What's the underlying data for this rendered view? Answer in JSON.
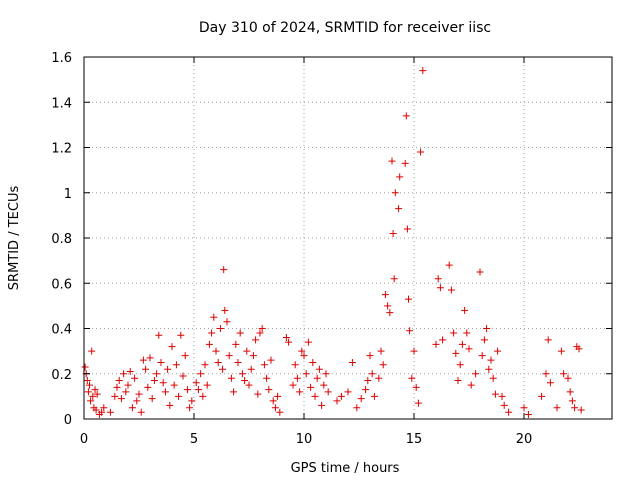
{
  "chart_data": {
    "type": "scatter",
    "title": "Day 310 of 2024, SRMTID for receiver iisc",
    "xlabel": "GPS time / hours",
    "ylabel": "SRMTID / TECUs",
    "xlim": [
      0,
      24
    ],
    "ylim": [
      0,
      1.6
    ],
    "x_ticks": [
      0,
      5,
      10,
      15,
      20
    ],
    "x_tick_labels": [
      "0",
      "5",
      "10",
      "15",
      "20"
    ],
    "y_ticks": [
      0,
      0.2,
      0.4,
      0.6,
      0.8,
      1.0,
      1.2,
      1.4,
      1.6
    ],
    "y_tick_labels": [
      "0",
      "0.2",
      "0.4",
      "0.6",
      "0.8",
      "1",
      "1.2",
      "1.4",
      "1.6"
    ],
    "grid": true,
    "marker": "+",
    "series": [
      {
        "name": "SRMTID",
        "color": "#dd0000",
        "points": [
          [
            0.05,
            0.23
          ],
          [
            0.1,
            0.2
          ],
          [
            0.15,
            0.17
          ],
          [
            0.2,
            0.12
          ],
          [
            0.25,
            0.15
          ],
          [
            0.3,
            0.08
          ],
          [
            0.35,
            0.3
          ],
          [
            0.4,
            0.1
          ],
          [
            0.45,
            0.05
          ],
          [
            0.5,
            0.13
          ],
          [
            0.55,
            0.04
          ],
          [
            0.6,
            0.11
          ],
          [
            0.7,
            0.02
          ],
          [
            0.8,
            0.03
          ],
          [
            0.9,
            0.05
          ],
          [
            1.2,
            0.03
          ],
          [
            1.4,
            0.1
          ],
          [
            1.5,
            0.14
          ],
          [
            1.6,
            0.17
          ],
          [
            1.7,
            0.09
          ],
          [
            1.8,
            0.2
          ],
          [
            1.9,
            0.12
          ],
          [
            2.0,
            0.15
          ],
          [
            2.1,
            0.21
          ],
          [
            2.2,
            0.05
          ],
          [
            2.3,
            0.18
          ],
          [
            2.4,
            0.08
          ],
          [
            2.5,
            0.11
          ],
          [
            2.6,
            0.03
          ],
          [
            2.7,
            0.26
          ],
          [
            2.8,
            0.22
          ],
          [
            2.9,
            0.14
          ],
          [
            3.0,
            0.27
          ],
          [
            3.1,
            0.09
          ],
          [
            3.2,
            0.17
          ],
          [
            3.3,
            0.2
          ],
          [
            3.4,
            0.37
          ],
          [
            3.5,
            0.25
          ],
          [
            3.6,
            0.16
          ],
          [
            3.7,
            0.12
          ],
          [
            3.8,
            0.22
          ],
          [
            3.9,
            0.06
          ],
          [
            4.0,
            0.32
          ],
          [
            4.1,
            0.15
          ],
          [
            4.2,
            0.24
          ],
          [
            4.3,
            0.1
          ],
          [
            4.4,
            0.37
          ],
          [
            4.5,
            0.19
          ],
          [
            4.6,
            0.28
          ],
          [
            4.7,
            0.13
          ],
          [
            4.8,
            0.05
          ],
          [
            4.9,
            0.08
          ],
          [
            5.1,
            0.16
          ],
          [
            5.2,
            0.13
          ],
          [
            5.3,
            0.2
          ],
          [
            5.4,
            0.1
          ],
          [
            5.5,
            0.24
          ],
          [
            5.6,
            0.15
          ],
          [
            5.7,
            0.33
          ],
          [
            5.8,
            0.38
          ],
          [
            5.9,
            0.45
          ],
          [
            6.0,
            0.3
          ],
          [
            6.1,
            0.25
          ],
          [
            6.2,
            0.4
          ],
          [
            6.3,
            0.22
          ],
          [
            6.35,
            0.66
          ],
          [
            6.4,
            0.48
          ],
          [
            6.5,
            0.43
          ],
          [
            6.6,
            0.28
          ],
          [
            6.7,
            0.18
          ],
          [
            6.8,
            0.12
          ],
          [
            6.9,
            0.33
          ],
          [
            7.0,
            0.25
          ],
          [
            7.1,
            0.38
          ],
          [
            7.2,
            0.2
          ],
          [
            7.3,
            0.17
          ],
          [
            7.4,
            0.3
          ],
          [
            7.5,
            0.15
          ],
          [
            7.6,
            0.22
          ],
          [
            7.7,
            0.28
          ],
          [
            7.8,
            0.35
          ],
          [
            7.9,
            0.11
          ],
          [
            8.0,
            0.38
          ],
          [
            8.1,
            0.4
          ],
          [
            8.2,
            0.24
          ],
          [
            8.3,
            0.18
          ],
          [
            8.4,
            0.13
          ],
          [
            8.5,
            0.26
          ],
          [
            8.6,
            0.08
          ],
          [
            8.7,
            0.05
          ],
          [
            8.8,
            0.1
          ],
          [
            8.9,
            0.03
          ],
          [
            9.2,
            0.36
          ],
          [
            9.3,
            0.34
          ],
          [
            9.5,
            0.15
          ],
          [
            9.6,
            0.24
          ],
          [
            9.7,
            0.18
          ],
          [
            9.8,
            0.12
          ],
          [
            9.9,
            0.3
          ],
          [
            10.0,
            0.28
          ],
          [
            10.1,
            0.2
          ],
          [
            10.2,
            0.34
          ],
          [
            10.3,
            0.14
          ],
          [
            10.4,
            0.25
          ],
          [
            10.5,
            0.1
          ],
          [
            10.6,
            0.18
          ],
          [
            10.7,
            0.22
          ],
          [
            10.8,
            0.06
          ],
          [
            10.9,
            0.15
          ],
          [
            11.0,
            0.2
          ],
          [
            11.1,
            0.12
          ],
          [
            11.5,
            0.08
          ],
          [
            11.7,
            0.1
          ],
          [
            12.0,
            0.12
          ],
          [
            12.2,
            0.25
          ],
          [
            12.4,
            0.05
          ],
          [
            12.6,
            0.09
          ],
          [
            12.8,
            0.13
          ],
          [
            12.9,
            0.17
          ],
          [
            13.0,
            0.28
          ],
          [
            13.1,
            0.2
          ],
          [
            13.2,
            0.1
          ],
          [
            13.4,
            0.18
          ],
          [
            13.5,
            0.3
          ],
          [
            13.6,
            0.24
          ],
          [
            13.7,
            0.55
          ],
          [
            13.8,
            0.5
          ],
          [
            13.9,
            0.47
          ],
          [
            14.0,
            1.14
          ],
          [
            14.05,
            0.82
          ],
          [
            14.1,
            0.62
          ],
          [
            14.15,
            1.0
          ],
          [
            14.3,
            0.93
          ],
          [
            14.35,
            1.07
          ],
          [
            14.6,
            1.13
          ],
          [
            14.65,
            1.34
          ],
          [
            14.7,
            0.84
          ],
          [
            14.75,
            0.53
          ],
          [
            14.8,
            0.39
          ],
          [
            14.9,
            0.18
          ],
          [
            15.0,
            0.3
          ],
          [
            15.1,
            0.14
          ],
          [
            15.2,
            0.07
          ],
          [
            15.3,
            1.18
          ],
          [
            15.4,
            1.54
          ],
          [
            16.0,
            0.33
          ],
          [
            16.1,
            0.62
          ],
          [
            16.2,
            0.58
          ],
          [
            16.3,
            0.35
          ],
          [
            16.6,
            0.68
          ],
          [
            16.7,
            0.57
          ],
          [
            16.8,
            0.38
          ],
          [
            16.9,
            0.29
          ],
          [
            17.0,
            0.17
          ],
          [
            17.1,
            0.24
          ],
          [
            17.2,
            0.33
          ],
          [
            17.3,
            0.48
          ],
          [
            17.4,
            0.38
          ],
          [
            17.5,
            0.31
          ],
          [
            17.6,
            0.15
          ],
          [
            17.8,
            0.2
          ],
          [
            18.0,
            0.65
          ],
          [
            18.1,
            0.28
          ],
          [
            18.2,
            0.35
          ],
          [
            18.3,
            0.4
          ],
          [
            18.4,
            0.22
          ],
          [
            18.5,
            0.26
          ],
          [
            18.6,
            0.18
          ],
          [
            18.7,
            0.11
          ],
          [
            18.8,
            0.3
          ],
          [
            19.0,
            0.1
          ],
          [
            19.1,
            0.06
          ],
          [
            19.3,
            0.03
          ],
          [
            20.0,
            0.05
          ],
          [
            20.2,
            0.02
          ],
          [
            20.8,
            0.1
          ],
          [
            21.0,
            0.2
          ],
          [
            21.1,
            0.35
          ],
          [
            21.2,
            0.16
          ],
          [
            21.5,
            0.05
          ],
          [
            21.7,
            0.3
          ],
          [
            21.8,
            0.2
          ],
          [
            22.0,
            0.18
          ],
          [
            22.1,
            0.12
          ],
          [
            22.2,
            0.08
          ],
          [
            22.3,
            0.05
          ],
          [
            22.4,
            0.32
          ],
          [
            22.5,
            0.31
          ],
          [
            22.6,
            0.04
          ]
        ]
      }
    ]
  }
}
